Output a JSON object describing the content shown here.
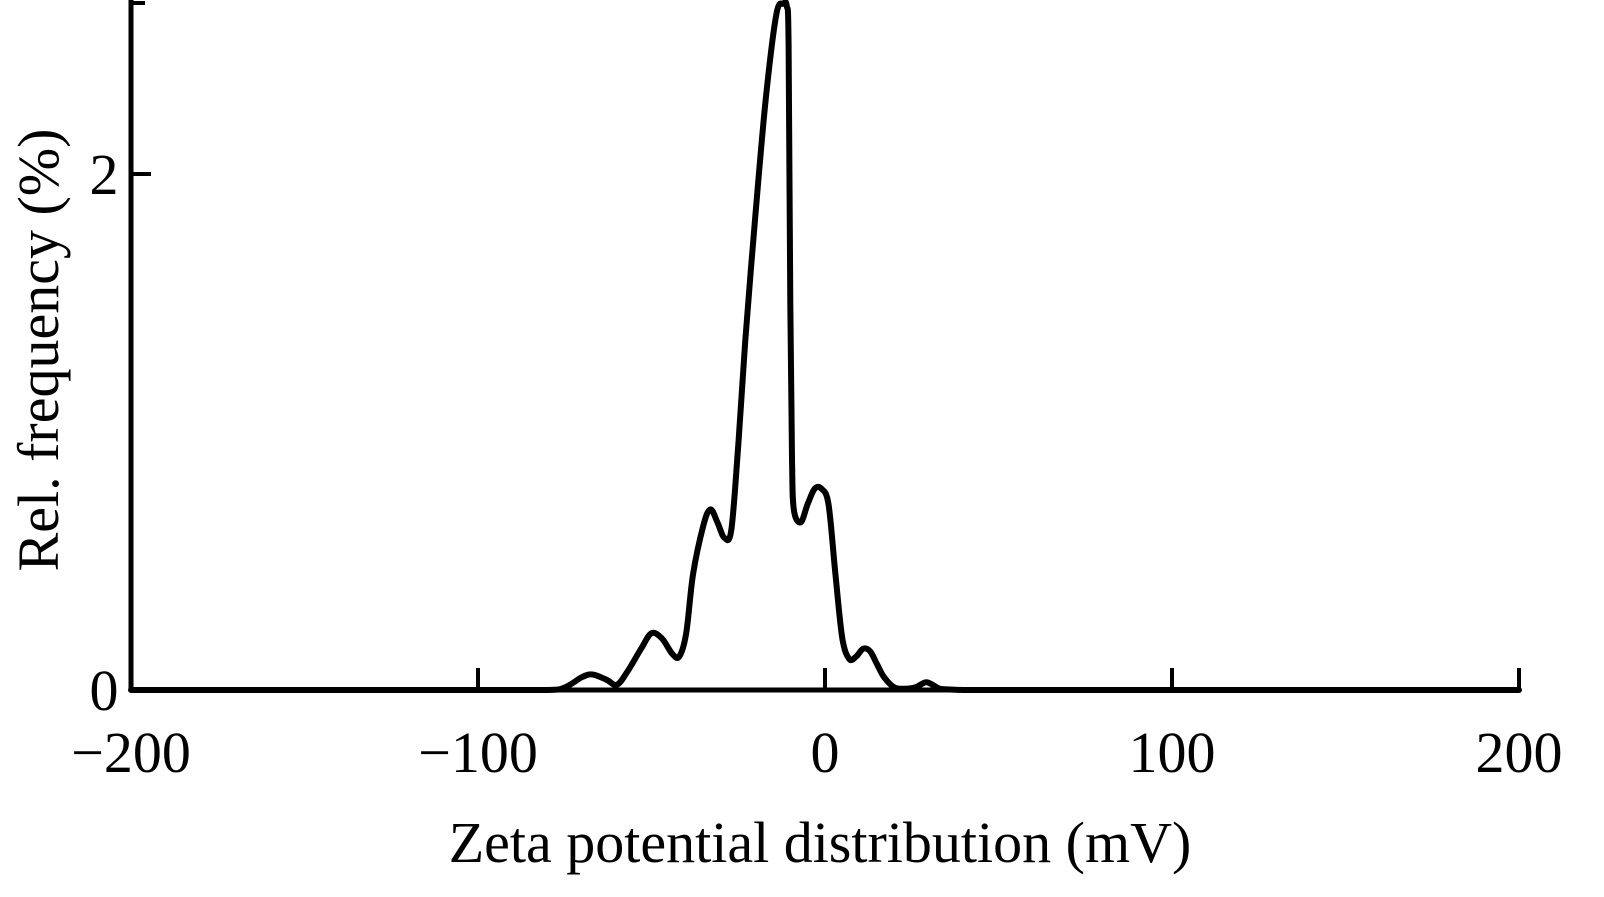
{
  "chart_data": {
    "type": "line",
    "title": "",
    "xlabel": "Zeta potential distribution (mV)",
    "ylabel": "Rel. frequency (%)",
    "xlim": [
      -200,
      200
    ],
    "ylim": [
      0,
      2.6
    ],
    "x_ticks": [
      -200,
      -100,
      0,
      100,
      200
    ],
    "x_tick_labels": [
      "−200",
      "−100",
      "0",
      "100",
      "200"
    ],
    "y_ticks": [
      0,
      2
    ],
    "y_tick_labels": [
      "0",
      "2"
    ],
    "grid": false,
    "legend": "none",
    "series": [
      {
        "color": "#000000",
        "x": [
          -200,
          -100,
          -80,
          -75,
          -70,
          -67,
          -63,
          -60,
          -57,
          -53,
          -50,
          -47,
          -44,
          -42,
          -40,
          -38,
          -35,
          -33,
          -31,
          -29,
          -27,
          -25,
          -23,
          -20,
          -17,
          -14,
          -12,
          -11,
          -10.5,
          -10,
          -9.5,
          -9,
          -7,
          -5,
          -3,
          -1,
          1,
          3,
          5,
          7,
          9,
          11,
          13,
          15,
          17,
          20,
          23,
          26,
          29,
          31,
          33,
          36,
          40,
          50,
          100,
          200
        ],
        "y": [
          0,
          0,
          0,
          0.01,
          0.05,
          0.06,
          0.04,
          0.02,
          0.07,
          0.16,
          0.22,
          0.2,
          0.14,
          0.13,
          0.22,
          0.45,
          0.64,
          0.7,
          0.65,
          0.59,
          0.62,
          0.95,
          1.35,
          1.85,
          2.3,
          2.62,
          2.66,
          2.65,
          2.5,
          1.5,
          0.9,
          0.7,
          0.65,
          0.72,
          0.78,
          0.78,
          0.72,
          0.45,
          0.2,
          0.12,
          0.13,
          0.16,
          0.15,
          0.1,
          0.05,
          0.01,
          0.005,
          0.01,
          0.03,
          0.02,
          0.005,
          0.002,
          0,
          0,
          0,
          0
        ]
      }
    ]
  }
}
